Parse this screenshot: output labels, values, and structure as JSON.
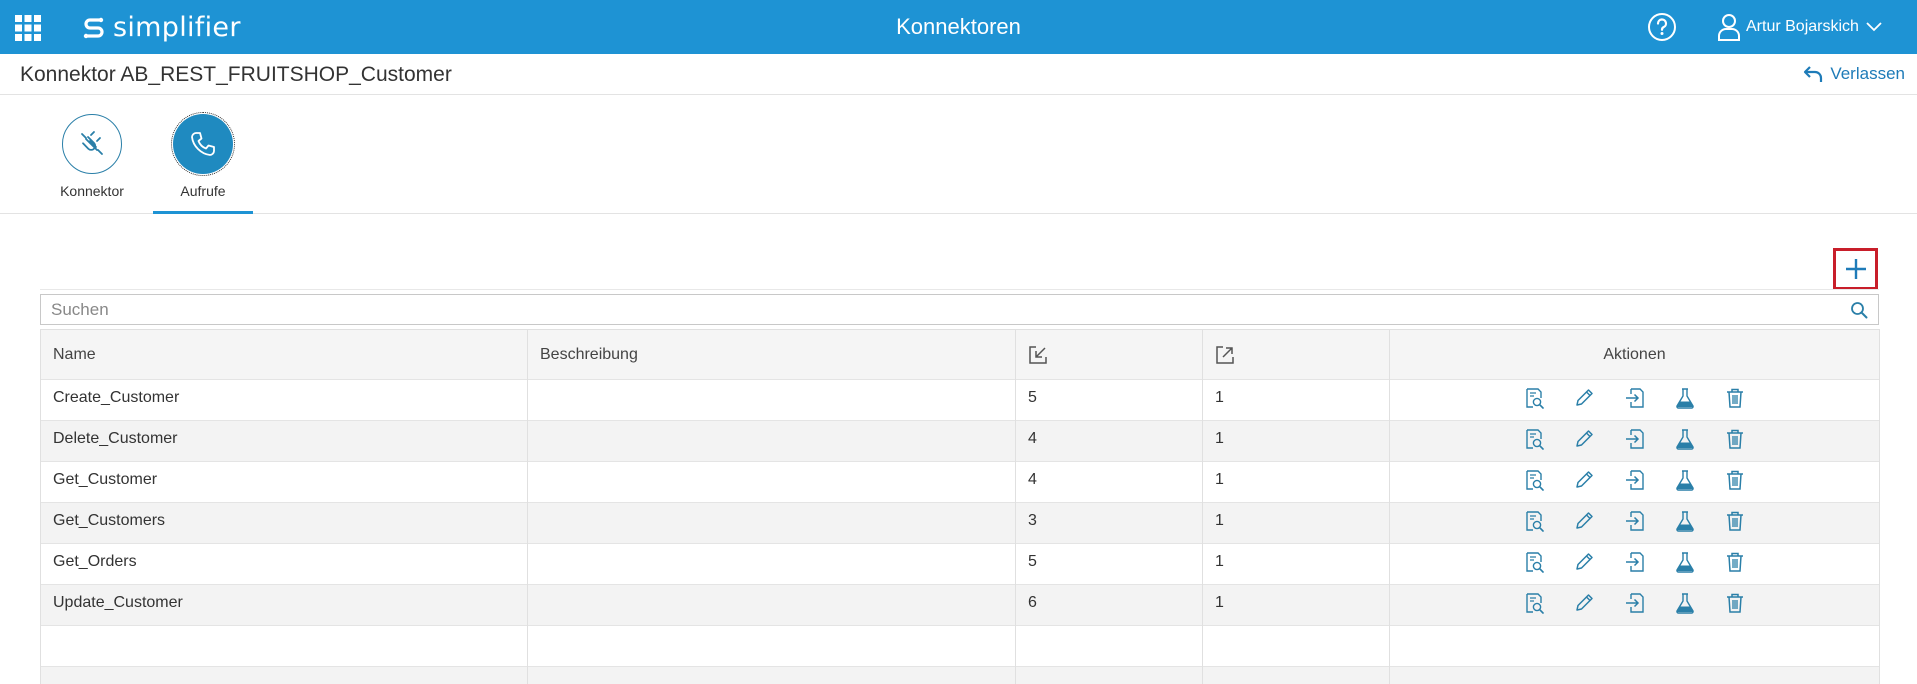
{
  "header": {
    "logo_text": "simplifier",
    "title": "Konnektoren",
    "user_name": "Artur Bojarskich"
  },
  "page": {
    "title": "Konnektor AB_REST_FRUITSHOP_Customer",
    "leave_label": "Verlassen"
  },
  "tabs": [
    {
      "label": "Konnektor",
      "icon": "plug-icon",
      "active": false
    },
    {
      "label": "Aufrufe",
      "icon": "phone-icon",
      "active": true
    }
  ],
  "search": {
    "placeholder": "Suchen",
    "value": ""
  },
  "table": {
    "columns": {
      "name": "Name",
      "description": "Beschreibung",
      "inputs_icon": "input-params-icon",
      "outputs_icon": "output-params-icon",
      "actions": "Aktionen"
    },
    "rows": [
      {
        "name": "Create_Customer",
        "description": "",
        "inputs": "5",
        "outputs": "1"
      },
      {
        "name": "Delete_Customer",
        "description": "",
        "inputs": "4",
        "outputs": "1"
      },
      {
        "name": "Get_Customer",
        "description": "",
        "inputs": "4",
        "outputs": "1"
      },
      {
        "name": "Get_Customers",
        "description": "",
        "inputs": "3",
        "outputs": "1"
      },
      {
        "name": "Get_Orders",
        "description": "",
        "inputs": "5",
        "outputs": "1"
      },
      {
        "name": "Update_Customer",
        "description": "",
        "inputs": "6",
        "outputs": "1"
      },
      {
        "name": "",
        "description": "",
        "inputs": "",
        "outputs": ""
      },
      {
        "name": "",
        "description": "",
        "inputs": "",
        "outputs": ""
      }
    ],
    "row_actions": [
      "details-icon",
      "edit-icon",
      "import-icon",
      "test-icon",
      "delete-icon"
    ]
  },
  "colors": {
    "header_bg": "#1e93d4",
    "accent": "#1e7bb8",
    "highlight_border": "#c81e2a",
    "icon": "#2a7fa8"
  }
}
